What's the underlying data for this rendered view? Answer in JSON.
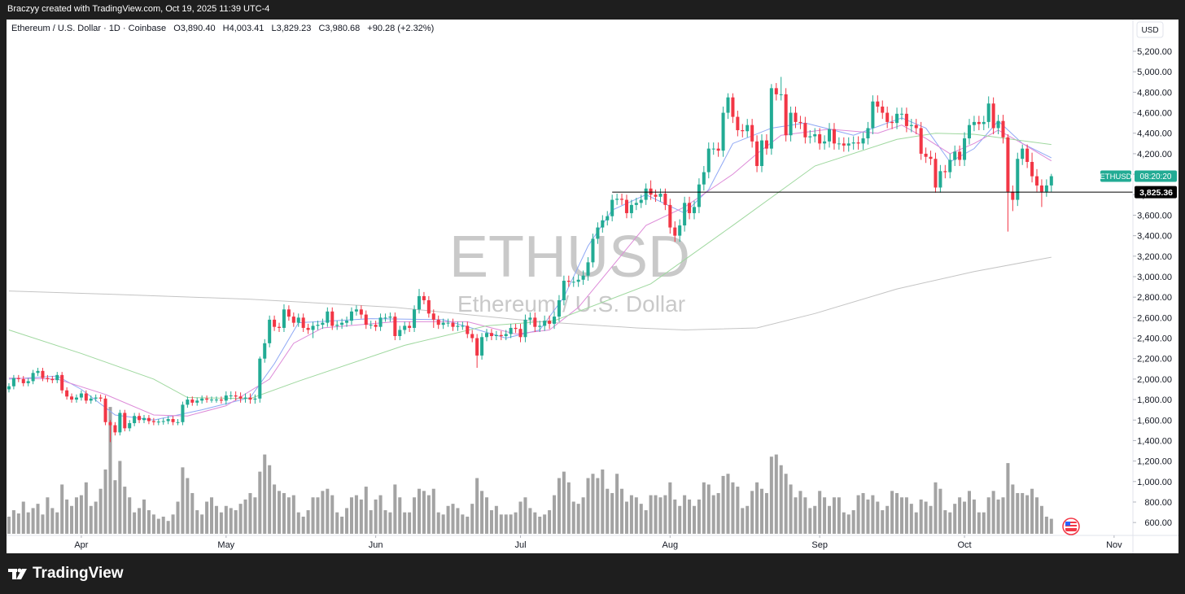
{
  "header": {
    "attribution": "Braczyy created with TradingView.com, Oct 19, 2025 11:39 UTC-4"
  },
  "footer": {
    "logo": "TradingView"
  },
  "chart_data": {
    "type": "candlestick",
    "title": "Ethereum / U.S. Dollar · 1D · Coinbase",
    "legend_text": [
      "O3,890.40",
      "H4,003.41",
      "L3,829.23",
      "C3,980.68",
      "+90.28 (+2.32%)"
    ],
    "watermark": "ETHUSD",
    "watermark_subtitle": "Ethereum / U.S. Dollar",
    "currency": "USD",
    "symbol": "ETHUSD",
    "countdown": "08:20:20",
    "up_color": "#22ab94",
    "down_color": "#f23645",
    "volume_color": "#a3a3a3",
    "grid": false,
    "open": [
      1900,
      1930,
      2010,
      2000,
      1960,
      1980,
      2060,
      2080,
      2010,
      2000,
      1990,
      2040,
      1890,
      1830,
      1800,
      1820,
      1860,
      1790,
      1810,
      1820,
      1810,
      1580,
      1550,
      1480,
      1670,
      1520,
      1570,
      1640,
      1600,
      1620,
      1590,
      1580,
      1585,
      1590,
      1610,
      1580,
      1580,
      1750,
      1800,
      1770,
      1790,
      1810,
      1800,
      1800,
      1800,
      1790,
      1840,
      1840,
      1830,
      1810,
      1820,
      1800,
      1810,
      2200,
      2350,
      2580,
      2510,
      2500,
      2680,
      2610,
      2550,
      2600,
      2500,
      2480,
      2520,
      2530,
      2550,
      2660,
      2520,
      2530,
      2550,
      2570,
      2660,
      2680,
      2630,
      2530,
      2530,
      2510,
      2600,
      2600,
      2610,
      2420,
      2480,
      2520,
      2500,
      2680,
      2810,
      2770,
      2640,
      2580,
      2530,
      2550,
      2550,
      2510,
      2520,
      2520,
      2440,
      2400,
      2230,
      2410,
      2450,
      2420,
      2430,
      2420,
      2440,
      2500,
      2490,
      2410,
      2580,
      2600,
      2510,
      2520,
      2570,
      2540,
      2610,
      2770,
      2960,
      2950,
      2950,
      2970,
      3010,
      3140,
      3370,
      3480,
      3550,
      3590,
      3750,
      3760,
      3750,
      3620,
      3700,
      3720,
      3750,
      3860,
      3800,
      3780,
      3810,
      3700,
      3480,
      3400,
      3500,
      3720,
      3620,
      3680,
      3900,
      4020,
      4250,
      4250,
      4230,
      4600,
      4750,
      4560,
      4430,
      4420,
      4480,
      4320,
      4080,
      4330,
      4250,
      4840,
      4780,
      4780,
      4380,
      4600,
      4510,
      4500,
      4360,
      4370,
      4390,
      4300,
      4320,
      4440,
      4300,
      4300,
      4280,
      4300,
      4310,
      4300,
      4350,
      4450,
      4710,
      4660,
      4600,
      4510,
      4500,
      4590,
      4590,
      4470,
      4480,
      4450,
      4200,
      4170,
      4150,
      3870,
      4030,
      4020,
      4140,
      4220,
      4140,
      4350,
      4480,
      4510,
      4490,
      4510,
      4690,
      4450,
      4520,
      4360,
      3830,
      3750,
      4150,
      4250,
      4120,
      3980,
      3890,
      3830,
      3890.4
    ],
    "high": [
      1960,
      2040,
      2040,
      2030,
      2010,
      2090,
      2110,
      2110,
      2040,
      2030,
      2070,
      2070,
      1920,
      1860,
      1850,
      1890,
      1890,
      1840,
      1850,
      1850,
      1840,
      1600,
      1580,
      1700,
      1700,
      1600,
      1670,
      1670,
      1650,
      1650,
      1620,
      1610,
      1620,
      1640,
      1640,
      1610,
      1780,
      1830,
      1830,
      1820,
      1840,
      1840,
      1830,
      1830,
      1830,
      1880,
      1880,
      1880,
      1870,
      1860,
      1860,
      1850,
      2220,
      2390,
      2620,
      2620,
      2550,
      2730,
      2720,
      2650,
      2640,
      2640,
      2540,
      2560,
      2570,
      2590,
      2700,
      2700,
      2570,
      2590,
      2610,
      2700,
      2720,
      2720,
      2670,
      2570,
      2570,
      2640,
      2640,
      2650,
      2650,
      2520,
      2560,
      2560,
      2720,
      2880,
      2850,
      2810,
      2680,
      2620,
      2590,
      2590,
      2590,
      2560,
      2560,
      2560,
      2480,
      2440,
      2450,
      2490,
      2490,
      2470,
      2470,
      2480,
      2540,
      2540,
      2540,
      2630,
      2650,
      2650,
      2570,
      2620,
      2620,
      2660,
      2820,
      3010,
      3010,
      3000,
      3020,
      3060,
      3190,
      3420,
      3530,
      3600,
      3640,
      3800,
      3810,
      3810,
      3800,
      3750,
      3770,
      3800,
      3910,
      3940,
      3850,
      3860,
      3860,
      3760,
      3540,
      3560,
      3780,
      3780,
      3740,
      3960,
      4080,
      4310,
      4310,
      4310,
      4660,
      4790,
      4790,
      4620,
      4490,
      4540,
      4540,
      4380,
      4390,
      4390,
      4880,
      4890,
      4950,
      4840,
      4660,
      4660,
      4570,
      4560,
      4430,
      4450,
      4450,
      4380,
      4500,
      4500,
      4360,
      4360,
      4360,
      4370,
      4370,
      4410,
      4510,
      4770,
      4770,
      4720,
      4660,
      4570,
      4650,
      4650,
      4650,
      4540,
      4540,
      4510,
      4260,
      4230,
      4210,
      4090,
      4090,
      4200,
      4280,
      4280,
      4410,
      4540,
      4570,
      4570,
      4570,
      4760,
      4750,
      4580,
      4580,
      4390,
      3890,
      4210,
      4290,
      4290,
      4210,
      4050,
      3950,
      3950,
      4003.41
    ],
    "low": [
      1870,
      1900,
      1970,
      1930,
      1930,
      1950,
      2030,
      1980,
      1970,
      1960,
      1960,
      1860,
      1800,
      1770,
      1770,
      1790,
      1760,
      1760,
      1780,
      1780,
      1550,
      1385,
      1450,
      1450,
      1490,
      1490,
      1540,
      1570,
      1570,
      1560,
      1550,
      1550,
      1555,
      1560,
      1550,
      1550,
      1550,
      1720,
      1740,
      1740,
      1760,
      1770,
      1770,
      1770,
      1760,
      1750,
      1800,
      1790,
      1770,
      1770,
      1760,
      1760,
      1770,
      2160,
      2310,
      2470,
      2460,
      2460,
      2570,
      2510,
      2510,
      2460,
      2440,
      2400,
      2480,
      2490,
      2510,
      2480,
      2480,
      2490,
      2510,
      2530,
      2620,
      2590,
      2490,
      2490,
      2470,
      2470,
      2560,
      2560,
      2380,
      2380,
      2440,
      2460,
      2460,
      2640,
      2730,
      2600,
      2500,
      2490,
      2490,
      2510,
      2470,
      2470,
      2480,
      2400,
      2360,
      2110,
      2190,
      2370,
      2380,
      2380,
      2380,
      2380,
      2400,
      2450,
      2360,
      2360,
      2530,
      2460,
      2460,
      2470,
      2490,
      2490,
      2560,
      2720,
      2900,
      2900,
      2900,
      2920,
      2960,
      3090,
      3320,
      3430,
      3500,
      3540,
      3700,
      3700,
      3570,
      3570,
      3650,
      3670,
      3700,
      3750,
      3730,
      3730,
      3650,
      3420,
      3340,
      3340,
      3440,
      3560,
      3560,
      3620,
      3840,
      3960,
      4190,
      4170,
      4170,
      4540,
      4500,
      4370,
      4360,
      4360,
      4260,
      4020,
      4020,
      4190,
      4190,
      4720,
      4720,
      4320,
      4320,
      4450,
      4440,
      4300,
      4300,
      4310,
      4240,
      4240,
      4260,
      4240,
      4240,
      4220,
      4220,
      4240,
      4240,
      4240,
      4290,
      4390,
      4600,
      4540,
      4450,
      4440,
      4440,
      4530,
      4410,
      4410,
      4390,
      4140,
      4110,
      4090,
      3820,
      3820,
      3960,
      3960,
      4080,
      4080,
      4080,
      4290,
      4420,
      4430,
      4430,
      4450,
      4390,
      4390,
      4300,
      3440,
      3640,
      3690,
      4090,
      4060,
      3920,
      3830,
      3680,
      3780,
      3829.23
    ],
    "close": [
      1930,
      2010,
      2000,
      1960,
      1980,
      2060,
      2080,
      2010,
      2000,
      1990,
      2040,
      1890,
      1830,
      1800,
      1820,
      1860,
      1790,
      1810,
      1820,
      1810,
      1580,
      1550,
      1480,
      1670,
      1520,
      1570,
      1640,
      1600,
      1620,
      1590,
      1580,
      1585,
      1590,
      1610,
      1580,
      1580,
      1750,
      1800,
      1770,
      1790,
      1810,
      1800,
      1800,
      1800,
      1790,
      1840,
      1840,
      1830,
      1810,
      1820,
      1800,
      1810,
      2200,
      2350,
      2580,
      2510,
      2500,
      2680,
      2610,
      2550,
      2600,
      2500,
      2480,
      2520,
      2530,
      2550,
      2660,
      2520,
      2530,
      2550,
      2570,
      2660,
      2680,
      2630,
      2530,
      2530,
      2510,
      2600,
      2600,
      2610,
      2420,
      2480,
      2520,
      2500,
      2680,
      2810,
      2770,
      2640,
      2580,
      2530,
      2550,
      2550,
      2510,
      2520,
      2520,
      2440,
      2400,
      2230,
      2410,
      2450,
      2420,
      2430,
      2420,
      2440,
      2500,
      2490,
      2410,
      2580,
      2600,
      2510,
      2520,
      2570,
      2540,
      2610,
      2770,
      2960,
      2950,
      2950,
      2970,
      3010,
      3140,
      3370,
      3480,
      3550,
      3590,
      3750,
      3760,
      3750,
      3620,
      3700,
      3720,
      3750,
      3860,
      3800,
      3780,
      3810,
      3700,
      3480,
      3400,
      3500,
      3720,
      3620,
      3680,
      3900,
      4020,
      4250,
      4250,
      4230,
      4600,
      4750,
      4560,
      4430,
      4420,
      4480,
      4320,
      4080,
      4330,
      4250,
      4840,
      4780,
      4780,
      4380,
      4600,
      4510,
      4500,
      4360,
      4370,
      4390,
      4300,
      4320,
      4440,
      4300,
      4300,
      4280,
      4300,
      4310,
      4300,
      4350,
      4450,
      4710,
      4660,
      4600,
      4510,
      4500,
      4590,
      4590,
      4470,
      4480,
      4450,
      4200,
      4170,
      4150,
      3870,
      4030,
      4020,
      4140,
      4220,
      4140,
      4350,
      4480,
      4510,
      4490,
      4510,
      4690,
      4450,
      4520,
      4360,
      3830,
      3750,
      4150,
      4250,
      4120,
      3980,
      3890,
      3830,
      3890.4,
      3980.68
    ],
    "volume": [
      80,
      110,
      95,
      150,
      100,
      120,
      140,
      90,
      170,
      120,
      100,
      230,
      160,
      130,
      170,
      180,
      240,
      130,
      150,
      210,
      300,
      592,
      250,
      340,
      220,
      170,
      100,
      120,
      160,
      110,
      90,
      70,
      80,
      60,
      90,
      150,
      310,
      260,
      190,
      110,
      90,
      150,
      170,
      130,
      100,
      130,
      120,
      110,
      140,
      160,
      190,
      170,
      290,
      370,
      320,
      230,
      200,
      190,
      170,
      180,
      100,
      80,
      110,
      170,
      170,
      200,
      210,
      180,
      100,
      80,
      120,
      170,
      180,
      160,
      220,
      110,
      160,
      180,
      110,
      100,
      230,
      170,
      100,
      100,
      170,
      210,
      200,
      180,
      210,
      100,
      90,
      130,
      140,
      120,
      90,
      80,
      140,
      260,
      200,
      170,
      110,
      130,
      90,
      90,
      90,
      100,
      150,
      170,
      120,
      100,
      80,
      90,
      110,
      180,
      260,
      290,
      240,
      150,
      140,
      170,
      260,
      280,
      260,
      300,
      210,
      190,
      280,
      210,
      150,
      180,
      170,
      140,
      110,
      180,
      180,
      170,
      180,
      240,
      160,
      130,
      180,
      160,
      130,
      160,
      240,
      230,
      180,
      190,
      270,
      280,
      240,
      220,
      120,
      130,
      200,
      240,
      210,
      190,
      360,
      370,
      320,
      280,
      230,
      170,
      200,
      170,
      120,
      130,
      200,
      170,
      130,
      170,
      170,
      100,
      90,
      110,
      180,
      190,
      160,
      180,
      150,
      110,
      130,
      200,
      190,
      170,
      170,
      140,
      100,
      160,
      150,
      130,
      240,
      210,
      110,
      100,
      140,
      170,
      150,
      200,
      160,
      100,
      100,
      170,
      200,
      160,
      170,
      330,
      230,
      190,
      190,
      180,
      210,
      170,
      130,
      80,
      70
    ],
    "ma_lines": [
      {
        "color": "#8fa8f5",
        "x": [
          0,
          10,
          15,
          22,
          30,
          40,
          50,
          55,
          60,
          75,
          90,
          103,
          110,
          115,
          120,
          125,
          132,
          140,
          145,
          150,
          158,
          165,
          175,
          185,
          190,
          195,
          200,
          205,
          210,
          216
        ],
        "values": [
          2000,
          2030,
          1900,
          1650,
          1600,
          1700,
          1820,
          2150,
          2550,
          2590,
          2580,
          2400,
          2480,
          2800,
          3300,
          3650,
          3800,
          3620,
          3850,
          4300,
          4450,
          4500,
          4380,
          4550,
          4450,
          4120,
          4250,
          4520,
          4300,
          4160
        ]
      },
      {
        "color": "#dd8ad8",
        "x": [
          0,
          10,
          20,
          30,
          37,
          45,
          54,
          59,
          65,
          80,
          95,
          105,
          112,
          118,
          125,
          132,
          140,
          150,
          155,
          160,
          170,
          180,
          185,
          190,
          195,
          200,
          205,
          210,
          216
        ],
        "values": [
          2010,
          2000,
          1850,
          1650,
          1640,
          1740,
          2000,
          2350,
          2500,
          2560,
          2560,
          2440,
          2480,
          2700,
          3100,
          3500,
          3680,
          4000,
          4200,
          4380,
          4440,
          4400,
          4480,
          4350,
          4200,
          4300,
          4430,
          4300,
          4130
        ]
      },
      {
        "color": "#9fd89f",
        "x": [
          0,
          15,
          30,
          37,
          50,
          60,
          82,
          99,
          113,
          133,
          150,
          167,
          184,
          192,
          200,
          216
        ],
        "values": [
          2480,
          2250,
          2000,
          1820,
          1810,
          1980,
          2330,
          2520,
          2570,
          2930,
          3500,
          4080,
          4340,
          4400,
          4390,
          4290
        ]
      },
      {
        "color": "#c4c4c4",
        "x": [
          0,
          20,
          50,
          80,
          110,
          130,
          140,
          155,
          167,
          184,
          200,
          216
        ],
        "values": [
          2860,
          2830,
          2780,
          2700,
          2560,
          2500,
          2480,
          2500,
          2640,
          2880,
          3050,
          3190
        ]
      }
    ],
    "price_line": {
      "value": 3825.36,
      "label": "3,825.36",
      "x": 125
    },
    "xlim": [
      -0.5,
      232.9
    ],
    "xticks": [
      {
        "value": 15,
        "label": "Apr"
      },
      {
        "value": 45,
        "label": "May"
      },
      {
        "value": 76,
        "label": "Jun"
      },
      {
        "value": 106,
        "label": "Jul"
      },
      {
        "value": 137,
        "label": "Aug"
      },
      {
        "value": 168,
        "label": "Sep"
      },
      {
        "value": 198,
        "label": "Oct"
      },
      {
        "value": 229,
        "label": "Nov"
      }
    ],
    "ylim": [
      490,
      5510
    ],
    "yticks": [
      {
        "value": 600,
        "label": "600.00"
      },
      {
        "value": 800,
        "label": "800.00"
      },
      {
        "value": 1000,
        "label": "1,000.00"
      },
      {
        "value": 1200,
        "label": "1,200.00"
      },
      {
        "value": 1400,
        "label": "1,400.00"
      },
      {
        "value": 1600,
        "label": "1,600.00"
      },
      {
        "value": 1800,
        "label": "1,800.00"
      },
      {
        "value": 2000,
        "label": "2,000.00"
      },
      {
        "value": 2200,
        "label": "2,200.00"
      },
      {
        "value": 2400,
        "label": "2,400.00"
      },
      {
        "value": 2600,
        "label": "2,600.00"
      },
      {
        "value": 2800,
        "label": "2,800.00"
      },
      {
        "value": 3000,
        "label": "3,000.00"
      },
      {
        "value": 3200,
        "label": "3,200.00"
      },
      {
        "value": 3400,
        "label": "3,400.00"
      },
      {
        "value": 3600,
        "label": "3,600.00"
      },
      {
        "value": 3800,
        "label": "3,800.00"
      },
      {
        "value": 4000,
        "label": "4,000.00"
      },
      {
        "value": 4200,
        "label": "4,200.00"
      },
      {
        "value": 4400,
        "label": "4,400.00"
      },
      {
        "value": 4600,
        "label": "4,600.00"
      },
      {
        "value": 4800,
        "label": "4,800.00"
      },
      {
        "value": 5000,
        "label": "5,000.00"
      },
      {
        "value": 5200,
        "label": "5,200.00"
      }
    ],
    "y2lim": [
      0,
      2400
    ]
  }
}
